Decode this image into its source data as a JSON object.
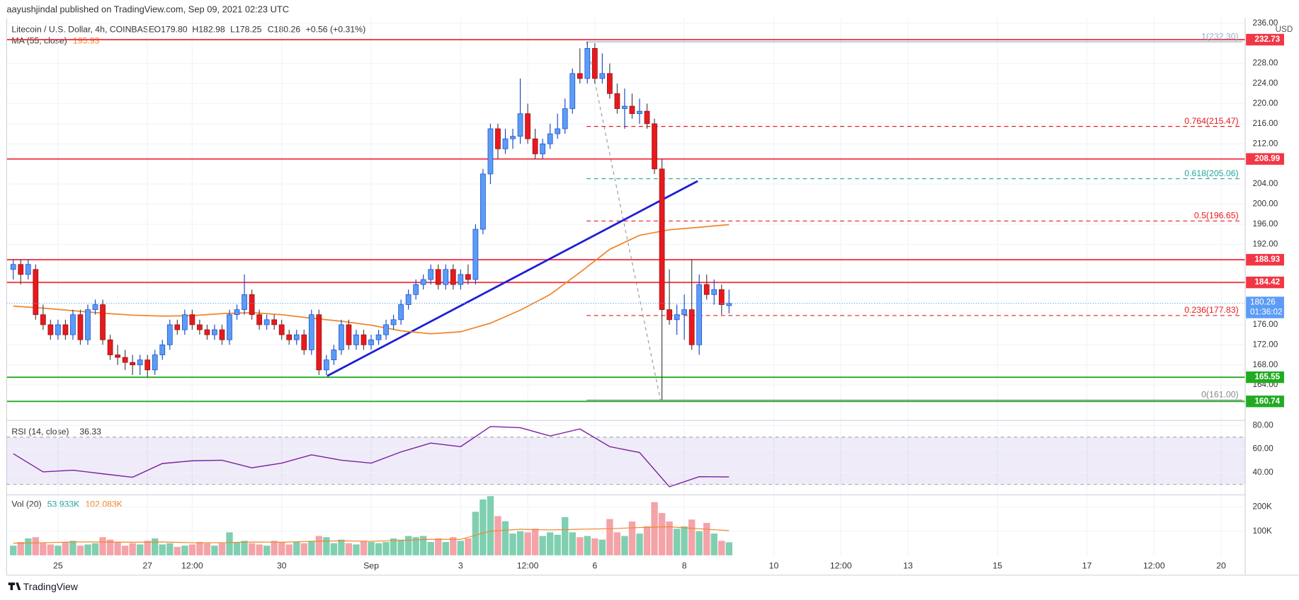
{
  "chart_data": {
    "type": "candlestick",
    "published": "aayushjindal published on TradingView.com, Sep 09, 2021 02:23 UTC",
    "symbol": "Litecoin / U.S. Dollar, 4h, COINBASE",
    "ohlc_text": [
      "O179.80",
      "H182.98",
      "L178.25",
      "C180.26",
      "+0.56 (+0.31%)"
    ],
    "currency": "USD",
    "countdown": "01:36:02",
    "footer": "TradingView",
    "up_color": "#5b9cf6",
    "up_edge": "#1848cc",
    "down_color": "#e8191d",
    "xlim": [
      -0.889,
      165.22
    ],
    "xticks": [
      {
        "value": 6,
        "label": "25"
      },
      {
        "value": 18,
        "label": "27"
      },
      {
        "value": 24,
        "label": "12:00"
      },
      {
        "value": 36,
        "label": "30"
      },
      {
        "value": 48,
        "label": "Sep"
      },
      {
        "value": 60,
        "label": "3"
      },
      {
        "value": 69,
        "label": "12:00"
      },
      {
        "value": 78,
        "label": "6"
      },
      {
        "value": 90,
        "label": "8"
      },
      {
        "value": 102,
        "label": "10"
      },
      {
        "value": 111,
        "label": "12:00"
      },
      {
        "value": 120,
        "label": "13"
      },
      {
        "value": 132,
        "label": "15"
      },
      {
        "value": 144,
        "label": "17"
      },
      {
        "value": 153,
        "label": "12:00"
      },
      {
        "value": 162,
        "label": "20"
      }
    ],
    "ylim": [
      157.12,
      237.0
    ],
    "yticks": [
      {
        "value": 236,
        "label": "236.00"
      },
      {
        "value": 228,
        "label": "228.00"
      },
      {
        "value": 224,
        "label": "224.00"
      },
      {
        "value": 220,
        "label": "220.00"
      },
      {
        "value": 216,
        "label": "216.00"
      },
      {
        "value": 212,
        "label": "212.00"
      },
      {
        "value": 204,
        "label": "204.00"
      },
      {
        "value": 200,
        "label": "200.00"
      },
      {
        "value": 196,
        "label": "196.00"
      },
      {
        "value": 192,
        "label": "192.00"
      },
      {
        "value": 176,
        "label": "176.00"
      },
      {
        "value": 172,
        "label": "172.00"
      },
      {
        "value": 168,
        "label": "168.00"
      },
      {
        "value": 164,
        "label": "164.00"
      }
    ],
    "grid": true,
    "ohlc": [
      [
        187,
        189,
        185,
        188
      ],
      [
        188,
        189,
        184,
        186
      ],
      [
        186,
        189,
        185,
        188
      ],
      [
        187,
        188,
        177,
        178
      ],
      [
        178,
        180,
        175,
        176
      ],
      [
        176,
        177,
        173,
        174
      ],
      [
        174,
        177,
        173,
        176
      ],
      [
        176,
        177,
        173,
        174
      ],
      [
        174,
        179,
        173,
        178
      ],
      [
        178,
        179,
        172,
        173
      ],
      [
        173,
        180,
        172,
        179
      ],
      [
        179,
        181,
        178,
        180
      ],
      [
        180,
        181,
        172,
        173
      ],
      [
        173,
        174,
        169,
        170
      ],
      [
        170,
        172,
        168,
        169.5
      ],
      [
        169.5,
        171,
        167,
        168.5
      ],
      [
        168.5,
        170,
        166,
        168
      ],
      [
        168,
        170,
        166,
        169
      ],
      [
        169,
        170,
        165.5,
        167
      ],
      [
        167,
        171,
        166,
        170
      ],
      [
        170,
        173,
        169,
        172
      ],
      [
        172,
        177,
        171,
        176
      ],
      [
        176,
        177,
        174,
        175
      ],
      [
        175,
        179,
        174,
        178
      ],
      [
        178,
        179,
        175,
        176
      ],
      [
        176,
        177,
        174,
        175
      ],
      [
        175,
        176,
        173,
        174
      ],
      [
        174,
        176,
        173,
        175
      ],
      [
        175,
        176,
        172,
        173
      ],
      [
        173,
        179,
        172,
        178
      ],
      [
        178,
        180,
        177,
        179
      ],
      [
        179,
        186,
        178,
        182
      ],
      [
        182,
        183,
        177,
        178
      ],
      [
        178,
        179,
        175,
        176
      ],
      [
        176,
        178,
        175,
        177
      ],
      [
        177,
        178,
        175,
        176
      ],
      [
        176,
        177,
        173,
        174
      ],
      [
        174,
        175,
        172,
        173
      ],
      [
        173,
        175,
        172,
        174
      ],
      [
        174,
        175,
        170,
        171
      ],
      [
        171,
        179,
        170,
        178
      ],
      [
        178,
        179,
        166,
        167
      ],
      [
        167,
        170,
        166,
        169
      ],
      [
        169,
        172,
        168,
        171
      ],
      [
        171,
        177,
        170,
        176
      ],
      [
        176,
        177,
        171,
        172
      ],
      [
        172,
        175,
        171,
        174
      ],
      [
        174,
        175,
        171,
        172
      ],
      [
        172,
        174,
        171,
        173
      ],
      [
        173,
        175,
        172,
        174
      ],
      [
        174,
        177,
        173,
        176
      ],
      [
        176,
        178,
        175,
        177
      ],
      [
        177,
        181,
        176,
        180
      ],
      [
        180,
        183,
        179,
        182
      ],
      [
        182,
        185,
        181,
        184
      ],
      [
        184,
        186,
        183,
        185
      ],
      [
        185,
        188,
        184,
        187
      ],
      [
        187,
        188,
        183,
        184
      ],
      [
        184,
        188,
        183,
        187
      ],
      [
        187,
        188,
        183,
        184
      ],
      [
        184,
        187,
        183,
        186
      ],
      [
        186,
        188,
        184,
        185
      ],
      [
        185,
        196,
        184,
        195
      ],
      [
        195,
        207,
        194,
        206
      ],
      [
        206,
        216,
        204,
        215
      ],
      [
        215,
        216,
        209,
        211
      ],
      [
        211,
        215,
        210,
        213
      ],
      [
        213,
        215,
        211,
        213.5
      ],
      [
        213.5,
        225,
        212,
        218
      ],
      [
        218,
        220,
        212,
        213
      ],
      [
        213,
        215,
        209,
        210
      ],
      [
        210,
        213,
        209,
        212
      ],
      [
        212,
        216,
        211,
        214
      ],
      [
        214,
        218,
        213,
        215
      ],
      [
        215,
        221,
        214,
        219
      ],
      [
        219,
        227,
        218,
        226
      ],
      [
        226,
        231,
        224,
        225
      ],
      [
        225,
        232.3,
        224,
        231
      ],
      [
        231,
        232,
        224,
        225
      ],
      [
        225,
        230,
        224,
        226
      ],
      [
        226,
        228,
        221,
        222
      ],
      [
        222,
        224,
        218,
        219
      ],
      [
        219,
        223,
        215,
        219.5
      ],
      [
        219.5,
        222,
        217,
        218
      ],
      [
        218,
        221,
        216,
        218.5
      ],
      [
        218.5,
        220,
        215,
        216
      ],
      [
        216,
        217,
        206,
        207
      ],
      [
        207,
        209,
        161,
        179
      ],
      [
        179,
        187,
        176,
        177
      ],
      [
        177,
        180,
        174,
        178
      ],
      [
        178,
        182,
        173,
        179
      ],
      [
        179,
        189,
        171,
        172
      ],
      [
        172,
        186,
        170,
        184
      ],
      [
        184,
        186,
        181,
        182
      ],
      [
        182,
        185,
        180,
        183
      ],
      [
        183,
        184,
        178,
        180
      ],
      [
        179.8,
        182.98,
        178.25,
        180.26
      ]
    ],
    "ma": {
      "name": "MA (55, close)",
      "color": "#f0862a",
      "x": [
        0,
        4,
        8,
        12,
        16,
        20,
        24,
        28,
        32,
        36,
        40,
        44,
        48,
        52,
        56,
        60,
        64,
        68,
        72,
        76,
        80,
        84,
        88,
        92,
        96
      ],
      "values": [
        179.7,
        179.3,
        178.8,
        178.3,
        177.9,
        177.7,
        177.8,
        178.2,
        178.4,
        178.0,
        177.3,
        176.7,
        175.9,
        174.8,
        174.2,
        174.6,
        176.3,
        178.9,
        182.0,
        186.4,
        191.0,
        193.8,
        194.9,
        195.4,
        195.93
      ]
    },
    "hlines": [
      {
        "value": 232.73,
        "color": "#f23645"
      },
      {
        "value": 208.99,
        "color": "#f23645"
      },
      {
        "value": 188.93,
        "color": "#f23645"
      },
      {
        "value": 184.42,
        "color": "#f23645"
      },
      {
        "value": 165.55,
        "color": "#22ab22"
      },
      {
        "value": 160.74,
        "color": "#22ab22"
      }
    ],
    "fib": [
      {
        "label": "1(232.30)",
        "value": 232.3,
        "color": "#8fb3c9",
        "dash": false
      },
      {
        "label": "0.764(215.47)",
        "value": 215.47,
        "color": "#e8191d",
        "dash": true
      },
      {
        "label": "0.618(205.06)",
        "value": 205.06,
        "color": "#26a69a",
        "dash": true
      },
      {
        "label": "0.5(196.65)",
        "value": 196.65,
        "color": "#e8191d",
        "dash": true
      },
      {
        "label": "0.236(177.83)",
        "value": 177.83,
        "color": "#e8191d",
        "dash": true
      },
      {
        "label": "0(161.00)",
        "value": 161.0,
        "color": "#888888",
        "dash": false
      }
    ],
    "fib_start_x": 76.9,
    "trendline": {
      "x": [
        42.1,
        91.8
      ],
      "y": [
        165.8,
        204.6
      ],
      "color": "#1e1ed6"
    },
    "fib_trend": {
      "x": [
        76.9,
        86.8
      ],
      "y": [
        232.3,
        161.0
      ]
    },
    "rsi": {
      "name": "RSI (14, close)",
      "color": "#7b1fa2",
      "ylim": [
        21.8,
        84.2
      ],
      "band": [
        30,
        70
      ],
      "yticks": [
        {
          "value": 80,
          "label": "80.00"
        },
        {
          "value": 60,
          "label": "60.00"
        },
        {
          "value": 40,
          "label": "40.00"
        }
      ],
      "x": [
        0,
        4,
        8,
        12,
        16,
        20,
        24,
        28,
        32,
        36,
        40,
        44,
        48,
        52,
        56,
        60,
        64,
        68,
        72,
        76,
        80,
        84,
        88,
        92,
        96
      ],
      "values": [
        56,
        40.6,
        42,
        39,
        36,
        47.7,
        50,
        50.5,
        44,
        48,
        55,
        50.5,
        48,
        57.5,
        65,
        62,
        79,
        78,
        71,
        77,
        62,
        57,
        28,
        36.5,
        36.33
      ]
    },
    "volume": {
      "name": "Vol (20)",
      "ylim": [
        0,
        250000
      ],
      "up_color": "#7fcfb0",
      "down_color": "#f4a3a8",
      "legend_value_label": "53.933K",
      "yticks": [
        {
          "value": 200000,
          "label": "200K"
        },
        {
          "value": 100000,
          "label": "100K"
        }
      ],
      "values": [
        40000,
        55000,
        70000,
        75000,
        50000,
        45000,
        40000,
        55000,
        60000,
        40000,
        45000,
        50000,
        75000,
        65000,
        55000,
        40000,
        50000,
        45000,
        60000,
        70000,
        45000,
        50000,
        35000,
        40000,
        45000,
        55000,
        50000,
        40000,
        50000,
        95000,
        55000,
        60000,
        50000,
        45000,
        40000,
        60000,
        55000,
        45000,
        55000,
        50000,
        60000,
        80000,
        75000,
        50000,
        65000,
        50000,
        45000,
        60000,
        55000,
        50000,
        55000,
        70000,
        65000,
        80000,
        75000,
        80000,
        55000,
        70000,
        55000,
        75000,
        60000,
        70000,
        180000,
        231000,
        245000,
        162000,
        141000,
        90000,
        100000,
        95000,
        110000,
        80000,
        95000,
        85000,
        158000,
        95000,
        75000,
        80000,
        70000,
        65000,
        150000,
        95000,
        80000,
        140000,
        90000,
        120000,
        220000,
        175000,
        140000,
        110000,
        120000,
        148000,
        100000,
        134000,
        90000,
        60000,
        53933
      ],
      "ma": {
        "color": "#f0862a",
        "legend_value_label": "102.083K",
        "x": [
          0,
          4,
          8,
          12,
          16,
          20,
          24,
          28,
          32,
          36,
          40,
          44,
          48,
          52,
          56,
          60,
          64,
          68,
          72,
          76,
          80,
          84,
          88,
          92,
          96
        ],
        "values": [
          50000,
          52000,
          55000,
          55000,
          54000,
          55000,
          52000,
          52000,
          55000,
          54000,
          58000,
          60000,
          58000,
          62000,
          66000,
          66000,
          100000,
          108000,
          105000,
          108000,
          110000,
          115000,
          118000,
          110000,
          102083
        ]
      }
    }
  }
}
